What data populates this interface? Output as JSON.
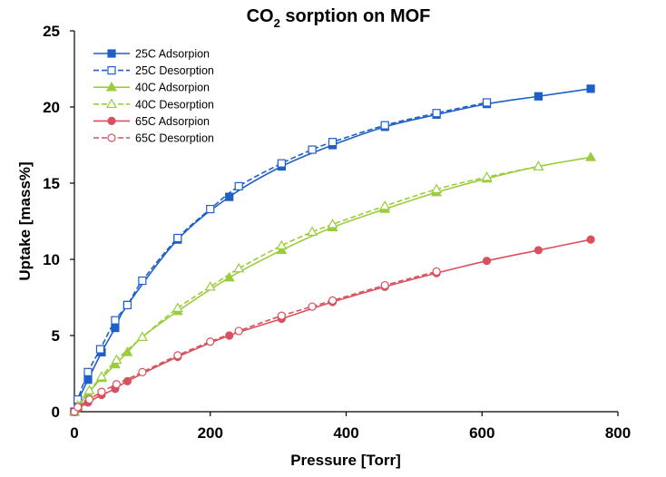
{
  "chart_data": {
    "type": "line",
    "title": {
      "prefix": "CO",
      "subscript": "2",
      "suffix": " sorption on MOF"
    },
    "xlabel": "Pressure [Torr]",
    "ylabel": "Uptake [mass%]",
    "xlim": [
      0,
      800
    ],
    "ylim": [
      0,
      25
    ],
    "xticks": [
      0,
      200,
      400,
      600,
      800
    ],
    "yticks": [
      0,
      5,
      10,
      15,
      20,
      25
    ],
    "grid": false,
    "legend_position": "top-left",
    "series": [
      {
        "name": "25C Adsorpion",
        "color": "#1f5fc8",
        "marker": "square",
        "filled": true,
        "dashed": false,
        "x": [
          0,
          5,
          20,
          40,
          60,
          78,
          152,
          228,
          305,
          380,
          457,
          533,
          607,
          683,
          760
        ],
        "y": [
          0,
          0.7,
          2.1,
          3.9,
          5.5,
          7.0,
          11.3,
          14.1,
          16.1,
          17.5,
          18.7,
          19.5,
          20.2,
          20.7,
          21.2
        ]
      },
      {
        "name": "25C Desorption",
        "color": "#1f5fc8",
        "marker": "square",
        "filled": false,
        "dashed": true,
        "x": [
          0,
          5,
          20,
          38,
          60,
          78,
          100,
          152,
          200,
          242,
          305,
          350,
          380,
          457,
          533,
          607
        ],
        "y": [
          0,
          0.8,
          2.6,
          4.1,
          6.0,
          7.0,
          8.6,
          11.4,
          13.3,
          14.8,
          16.3,
          17.2,
          17.7,
          18.8,
          19.6,
          20.3
        ]
      },
      {
        "name": "40C Adsorpion",
        "color": "#9acd3a",
        "marker": "triangle",
        "filled": true,
        "dashed": false,
        "x": [
          0,
          5,
          20,
          40,
          60,
          78,
          100,
          152,
          228,
          305,
          380,
          457,
          533,
          607,
          683,
          760
        ],
        "y": [
          0,
          0.3,
          1.2,
          2.2,
          3.1,
          3.9,
          4.9,
          6.6,
          8.8,
          10.6,
          12.1,
          13.3,
          14.4,
          15.3,
          16.1,
          16.7
        ]
      },
      {
        "name": "40C Desorption",
        "color": "#9acd3a",
        "marker": "triangle",
        "filled": false,
        "dashed": true,
        "x": [
          0,
          5,
          22,
          40,
          62,
          100,
          152,
          200,
          242,
          305,
          350,
          380,
          457,
          533,
          607,
          683
        ],
        "y": [
          0,
          0.4,
          1.4,
          2.3,
          3.4,
          4.9,
          6.8,
          8.2,
          9.4,
          10.9,
          11.8,
          12.3,
          13.5,
          14.6,
          15.4,
          16.1
        ]
      },
      {
        "name": "65C Adsorpion",
        "color": "#d9505e",
        "marker": "circle",
        "filled": true,
        "dashed": false,
        "x": [
          0,
          5,
          20,
          40,
          60,
          78,
          152,
          228,
          305,
          380,
          457,
          533,
          607,
          683,
          760
        ],
        "y": [
          0,
          0.2,
          0.6,
          1.1,
          1.5,
          2.0,
          3.6,
          5.0,
          6.1,
          7.2,
          8.2,
          9.1,
          9.9,
          10.6,
          11.3
        ]
      },
      {
        "name": "65C Desorption",
        "color": "#d9505e",
        "marker": "circle",
        "filled": false,
        "dashed": true,
        "x": [
          0,
          5,
          22,
          40,
          62,
          100,
          152,
          200,
          242,
          305,
          350,
          380,
          457,
          533
        ],
        "y": [
          0,
          0.3,
          0.8,
          1.3,
          1.8,
          2.6,
          3.7,
          4.6,
          5.3,
          6.3,
          6.9,
          7.3,
          8.3,
          9.2
        ]
      }
    ]
  }
}
